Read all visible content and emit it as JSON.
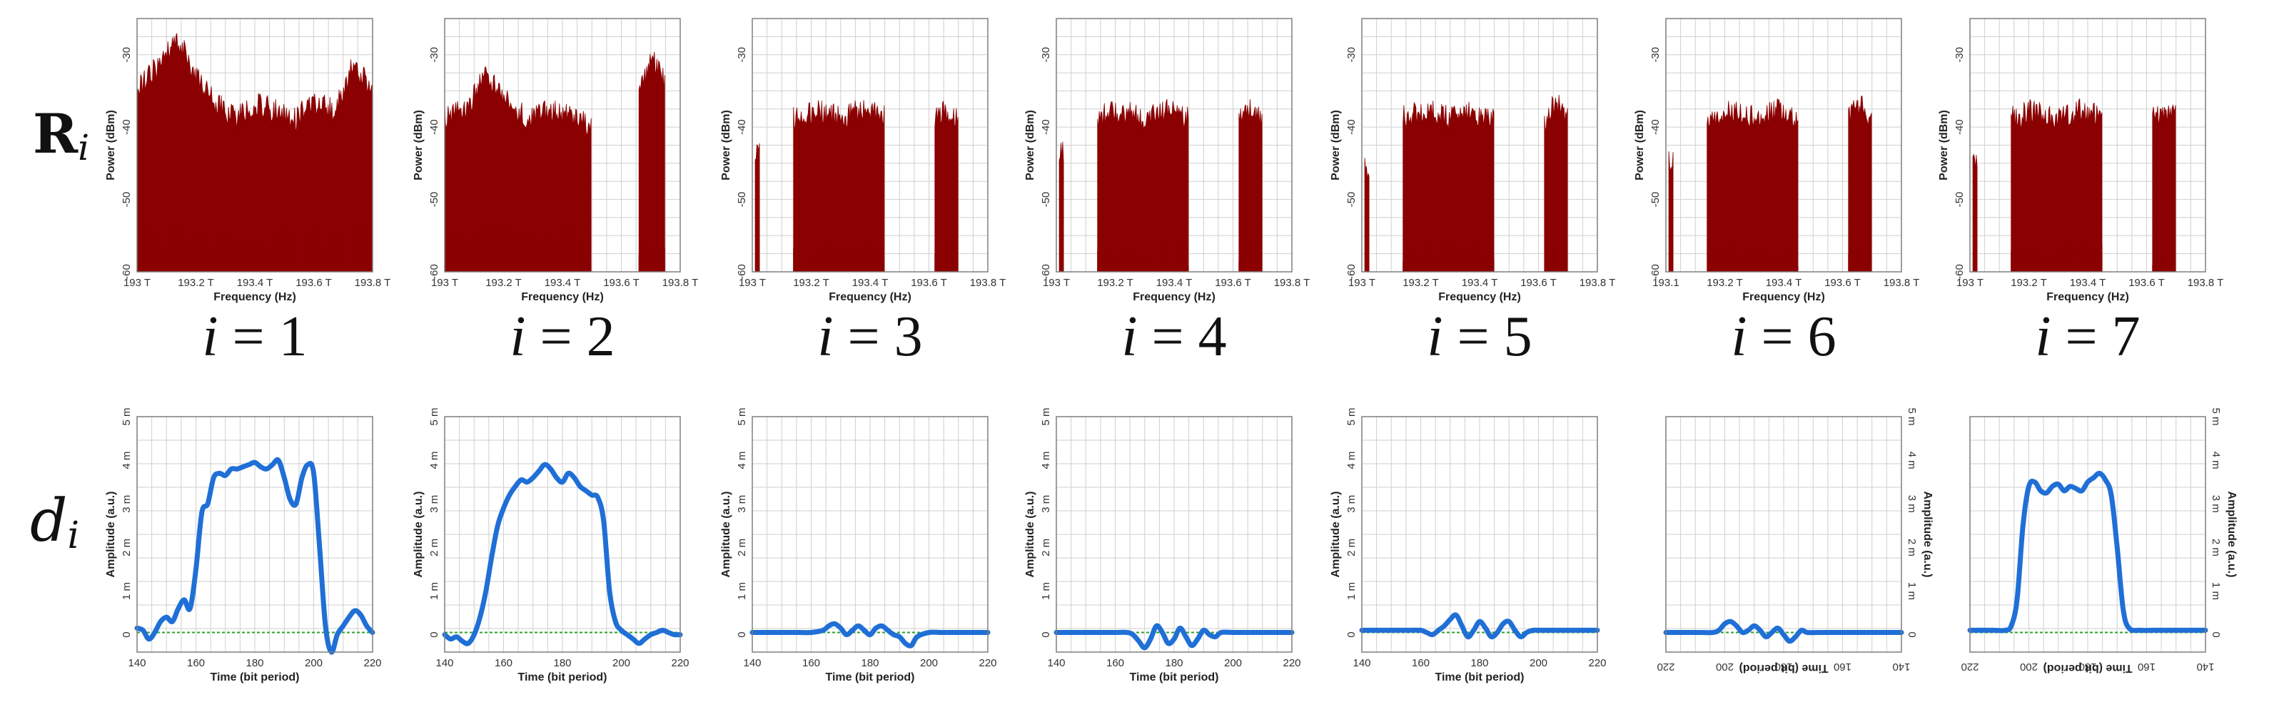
{
  "row_labels": {
    "top_main": "R",
    "top_sub": "i",
    "bottom_main": "d",
    "bottom_sub": "i"
  },
  "colors": {
    "spectrum": "#8b0000",
    "signal": "#1f6fd6",
    "baseline": "#2aa02a",
    "grid": "#cfcfcf",
    "frame": "#7f7f7f"
  },
  "chart_data": [
    {
      "type": "area",
      "panel": "spectrum",
      "index_label": "i = 1",
      "xlabel": "Frequency (Hz)",
      "ylabel": "Power (dBm)",
      "x_ticks": [
        "193 T",
        "193.2 T",
        "193.4 T",
        "193.6 T",
        "193.8 T"
      ],
      "y_ticks": [
        "-30",
        "-40",
        "-50",
        "-60"
      ],
      "ylim": [
        -60,
        -25
      ],
      "grid": true,
      "bands": [
        {
          "from": 193.0,
          "to": 193.8,
          "top_dbm": [
            -33,
            -30,
            -26,
            -31,
            -35,
            -37,
            -35,
            -36,
            -37,
            -35,
            -36,
            -30,
            -33
          ],
          "floor_dbm": -54
        }
      ]
    },
    {
      "type": "area",
      "panel": "spectrum",
      "index_label": "i = 2",
      "xlabel": "Frequency (Hz)",
      "ylabel": "Power (dBm)",
      "x_ticks": [
        "193 T",
        "193.2 T",
        "193.4 T",
        "193.6 T",
        "193.8 T"
      ],
      "y_ticks": [
        "-30",
        "-40",
        "-50",
        "-60"
      ],
      "ylim": [
        -60,
        -25
      ],
      "grid": true,
      "bands": [
        {
          "from": 193.0,
          "to": 193.5,
          "top_dbm": [
            -37,
            -36,
            -31,
            -35,
            -37,
            -36,
            -37,
            -38
          ],
          "floor_dbm": -54
        },
        {
          "from": 193.66,
          "to": 193.75,
          "top_dbm": [
            -33,
            -29,
            -32
          ],
          "floor_dbm": -55
        }
      ]
    },
    {
      "type": "area",
      "panel": "spectrum",
      "index_label": "i = 3",
      "xlabel": "Frequency (Hz)",
      "ylabel": "Power (dBm)",
      "x_ticks": [
        "193 T",
        "193.2 T",
        "193.4 T",
        "193.6 T",
        "193.8 T"
      ],
      "y_ticks": [
        "-30",
        "-40",
        "-50",
        "-60"
      ],
      "ylim": [
        -60,
        -25
      ],
      "grid": true,
      "bands": [
        {
          "from": 193.01,
          "to": 193.025,
          "top_dbm": [
            -42,
            -42
          ],
          "floor_dbm": -60
        },
        {
          "from": 193.14,
          "to": 193.45,
          "top_dbm": [
            -37,
            -36,
            -37,
            -36,
            -37
          ],
          "floor_dbm": -56
        },
        {
          "from": 193.62,
          "to": 193.7,
          "top_dbm": [
            -37,
            -36,
            -37
          ],
          "floor_dbm": -56
        }
      ]
    },
    {
      "type": "area",
      "panel": "spectrum",
      "index_label": "i = 4",
      "xlabel": "Frequency (Hz)",
      "ylabel": "Power (dBm)",
      "x_ticks": [
        "193 T",
        "193.2 T",
        "193.4 T",
        "193.6 T",
        "193.8 T"
      ],
      "y_ticks": [
        "-30",
        "-40",
        "-50",
        "-60"
      ],
      "ylim": [
        -60,
        -25
      ],
      "grid": true,
      "bands": [
        {
          "from": 193.01,
          "to": 193.025,
          "top_dbm": [
            -42,
            -42
          ],
          "floor_dbm": -60
        },
        {
          "from": 193.14,
          "to": 193.45,
          "top_dbm": [
            -37,
            -36,
            -37,
            -36,
            -37
          ],
          "floor_dbm": -56
        },
        {
          "from": 193.62,
          "to": 193.7,
          "top_dbm": [
            -37,
            -36,
            -37
          ],
          "floor_dbm": -56
        }
      ]
    },
    {
      "type": "area",
      "panel": "spectrum",
      "index_label": "i = 5",
      "xlabel": "Frequency (Hz)",
      "ylabel": "Power (dBm)",
      "x_ticks": [
        "193 T",
        "193.2 T",
        "193.4 T",
        "193.6 T",
        "193.8 T"
      ],
      "y_ticks": [
        "-30",
        "-40",
        "-50",
        "-60"
      ],
      "ylim": [
        -60,
        -25
      ],
      "grid": true,
      "bands": [
        {
          "from": 193.01,
          "to": 193.025,
          "top_dbm": [
            -44,
            -44
          ],
          "floor_dbm": -60
        },
        {
          "from": 193.14,
          "to": 193.45,
          "top_dbm": [
            -37,
            -36,
            -37,
            -36,
            -37
          ],
          "floor_dbm": -56
        },
        {
          "from": 193.62,
          "to": 193.7,
          "top_dbm": [
            -37,
            -35,
            -37
          ],
          "floor_dbm": -56
        }
      ]
    },
    {
      "type": "area",
      "panel": "spectrum",
      "index_label": "i = 6",
      "xlabel": "Frequency (Hz)",
      "ylabel": "Power (dBm)",
      "x_ticks": [
        "193.1",
        "193.2 T",
        "193.4 T",
        "193.6 T",
        "193.8 T"
      ],
      "y_ticks": [
        "-30",
        "-40",
        "-50",
        "-60"
      ],
      "ylim": [
        -60,
        -25
      ],
      "grid": true,
      "bands": [
        {
          "from": 193.01,
          "to": 193.025,
          "top_dbm": [
            -43,
            -43
          ],
          "floor_dbm": -60
        },
        {
          "from": 193.14,
          "to": 193.45,
          "top_dbm": [
            -37,
            -36,
            -37,
            -36,
            -37
          ],
          "floor_dbm": -56
        },
        {
          "from": 193.62,
          "to": 193.7,
          "top_dbm": [
            -37,
            -35,
            -37
          ],
          "floor_dbm": -56
        }
      ]
    },
    {
      "type": "area",
      "panel": "spectrum",
      "index_label": "i = 7",
      "xlabel": "Frequency (Hz)",
      "ylabel": "Power (dBm)",
      "x_ticks": [
        "193 T",
        "193.2 T",
        "193.4 T",
        "193.6 T",
        "193.8 T"
      ],
      "y_ticks": [
        "-30",
        "-40",
        "-50",
        "-60"
      ],
      "ylim": [
        -60,
        -25
      ],
      "grid": true,
      "bands": [
        {
          "from": 193.01,
          "to": 193.025,
          "top_dbm": [
            -43,
            -43
          ],
          "floor_dbm": -60
        },
        {
          "from": 193.14,
          "to": 193.45,
          "top_dbm": [
            -37,
            -36,
            -37,
            -36,
            -37
          ],
          "floor_dbm": -56
        },
        {
          "from": 193.62,
          "to": 193.7,
          "top_dbm": [
            -37,
            -36,
            -37
          ],
          "floor_dbm": -56
        }
      ]
    },
    {
      "type": "line",
      "panel": "signal",
      "xlabel": "Time (bit period)",
      "ylabel": "Amplitude (a.u.)",
      "x_ticks": [
        "140",
        "160",
        "180",
        "200",
        "220"
      ],
      "y_ticks": [
        "0",
        "1 m",
        "2 m",
        "3 m",
        "4 m",
        "5 m"
      ],
      "xlim": [
        140,
        220
      ],
      "ylim": [
        0,
        5
      ],
      "mirrored": false,
      "grid": true,
      "x": [
        140,
        142,
        144,
        146,
        148,
        150,
        152,
        154,
        156,
        158,
        160,
        162,
        164,
        166,
        168,
        170,
        172,
        174,
        176,
        178,
        180,
        182,
        184,
        186,
        188,
        190,
        192,
        194,
        196,
        198,
        200,
        202,
        204,
        206,
        208,
        210,
        212,
        214,
        216,
        218,
        220
      ],
      "y": [
        0.15,
        0.1,
        -0.1,
        0.05,
        0.3,
        0.4,
        0.3,
        0.6,
        0.8,
        0.6,
        1.5,
        2.8,
        3.0,
        3.6,
        3.7,
        3.65,
        3.8,
        3.8,
        3.85,
        3.9,
        3.95,
        3.85,
        3.8,
        3.9,
        4.0,
        3.6,
        3.1,
        3.0,
        3.6,
        3.9,
        3.7,
        2.0,
        0.2,
        -0.4,
        0.0,
        0.2,
        0.4,
        0.55,
        0.45,
        0.2,
        0.05
      ]
    },
    {
      "type": "line",
      "panel": "signal",
      "xlabel": "Time (bit period)",
      "ylabel": "Amplitude (a.u.)",
      "x_ticks": [
        "140",
        "160",
        "180",
        "200",
        "220"
      ],
      "y_ticks": [
        "0",
        "1 m",
        "2 m",
        "3 m",
        "4 m",
        "5 m"
      ],
      "xlim": [
        140,
        220
      ],
      "ylim": [
        0,
        5
      ],
      "mirrored": false,
      "grid": true,
      "x": [
        140,
        142,
        144,
        146,
        148,
        150,
        152,
        154,
        156,
        158,
        160,
        162,
        164,
        166,
        168,
        170,
        172,
        174,
        176,
        178,
        180,
        182,
        184,
        186,
        188,
        190,
        192,
        194,
        196,
        198,
        200,
        202,
        204,
        206,
        208,
        210,
        212,
        214,
        216,
        218,
        220
      ],
      "y": [
        0.0,
        -0.1,
        -0.05,
        -0.15,
        -0.2,
        0.0,
        0.4,
        1.0,
        1.8,
        2.5,
        2.9,
        3.2,
        3.4,
        3.55,
        3.5,
        3.6,
        3.75,
        3.9,
        3.8,
        3.6,
        3.5,
        3.7,
        3.6,
        3.4,
        3.3,
        3.2,
        3.15,
        2.6,
        1.0,
        0.3,
        0.1,
        0.0,
        -0.1,
        -0.2,
        -0.1,
        0.0,
        0.05,
        0.1,
        0.05,
        0.0,
        0.0
      ]
    },
    {
      "type": "line",
      "panel": "signal",
      "xlabel": "Time (bit period)",
      "ylabel": "Amplitude (a.u.)",
      "x_ticks": [
        "140",
        "160",
        "180",
        "200",
        "220"
      ],
      "y_ticks": [
        "0",
        "1 m",
        "2 m",
        "3 m",
        "4 m",
        "5 m"
      ],
      "xlim": [
        140,
        220
      ],
      "ylim": [
        0,
        5
      ],
      "mirrored": false,
      "grid": true,
      "x": [
        140,
        144,
        148,
        152,
        156,
        160,
        164,
        166,
        168,
        170,
        172,
        174,
        176,
        178,
        180,
        182,
        184,
        186,
        188,
        190,
        192,
        194,
        196,
        200,
        204,
        208,
        212,
        216,
        220
      ],
      "y": [
        0.05,
        0.05,
        0.05,
        0.05,
        0.05,
        0.05,
        0.1,
        0.2,
        0.25,
        0.15,
        0.0,
        0.1,
        0.2,
        0.1,
        0.0,
        0.15,
        0.2,
        0.1,
        0.0,
        -0.05,
        -0.2,
        -0.25,
        -0.05,
        0.05,
        0.05,
        0.05,
        0.05,
        0.05,
        0.05
      ]
    },
    {
      "type": "line",
      "panel": "signal",
      "xlabel": "Time (bit period)",
      "ylabel": "Amplitude (a.u.)",
      "x_ticks": [
        "140",
        "160",
        "180",
        "200",
        "220"
      ],
      "y_ticks": [
        "0",
        "1 m",
        "2 m",
        "3 m",
        "4 m",
        "5 m"
      ],
      "xlim": [
        140,
        220
      ],
      "ylim": [
        0,
        5
      ],
      "mirrored": false,
      "grid": true,
      "x": [
        140,
        144,
        148,
        152,
        156,
        160,
        164,
        166,
        168,
        170,
        172,
        174,
        176,
        178,
        180,
        182,
        184,
        186,
        188,
        190,
        192,
        194,
        196,
        200,
        204,
        208,
        212,
        216,
        220
      ],
      "y": [
        0.05,
        0.05,
        0.05,
        0.05,
        0.05,
        0.05,
        0.05,
        0.0,
        -0.15,
        -0.3,
        -0.1,
        0.2,
        0.05,
        -0.2,
        -0.1,
        0.15,
        -0.05,
        -0.25,
        -0.1,
        0.1,
        0.0,
        -0.05,
        0.05,
        0.05,
        0.05,
        0.05,
        0.05,
        0.05,
        0.05
      ]
    },
    {
      "type": "line",
      "panel": "signal",
      "xlabel": "Time (bit period)",
      "ylabel": "Amplitude (a.u.)",
      "x_ticks": [
        "140",
        "160",
        "180",
        "200",
        "220"
      ],
      "y_ticks": [
        "0",
        "1 m",
        "2 m",
        "3 m",
        "4 m",
        "5 m"
      ],
      "xlim": [
        140,
        220
      ],
      "ylim": [
        0,
        5
      ],
      "mirrored": false,
      "grid": true,
      "x": [
        140,
        144,
        148,
        152,
        156,
        160,
        162,
        164,
        166,
        168,
        170,
        172,
        174,
        176,
        178,
        180,
        182,
        184,
        186,
        188,
        190,
        192,
        194,
        196,
        198,
        200,
        204,
        208,
        212,
        216,
        220
      ],
      "y": [
        0.1,
        0.1,
        0.1,
        0.1,
        0.1,
        0.1,
        0.05,
        0.0,
        0.1,
        0.2,
        0.35,
        0.45,
        0.2,
        -0.05,
        0.1,
        0.3,
        0.15,
        -0.05,
        0.05,
        0.25,
        0.3,
        0.1,
        -0.05,
        0.05,
        0.1,
        0.1,
        0.1,
        0.1,
        0.1,
        0.1,
        0.1
      ]
    },
    {
      "type": "line",
      "panel": "signal",
      "xlabel": "Time (bit period)",
      "ylabel": "Amplitude (a.u.)",
      "x_ticks": [
        "220",
        "200",
        "180",
        "160",
        "140"
      ],
      "y_ticks": [
        "0",
        "1 m",
        "2 m",
        "3 m",
        "4 m",
        "5 m"
      ],
      "xlim": [
        220,
        140
      ],
      "ylim": [
        0,
        5
      ],
      "mirrored": true,
      "grid": true,
      "x": [
        220,
        216,
        212,
        208,
        204,
        202,
        200,
        198,
        196,
        194,
        192,
        190,
        188,
        186,
        184,
        182,
        180,
        178,
        176,
        174,
        172,
        168,
        164,
        160,
        156,
        152,
        148,
        144,
        140
      ],
      "y": [
        0.05,
        0.05,
        0.05,
        0.05,
        0.05,
        0.1,
        0.25,
        0.3,
        0.2,
        0.05,
        0.1,
        0.2,
        0.1,
        -0.05,
        0.05,
        0.15,
        0.0,
        -0.15,
        -0.05,
        0.1,
        0.05,
        0.05,
        0.05,
        0.05,
        0.05,
        0.05,
        0.05,
        0.05,
        0.05
      ]
    },
    {
      "type": "line",
      "panel": "signal",
      "xlabel": "Time (bit period)",
      "ylabel": "Amplitude (a.u.)",
      "x_ticks": [
        "220",
        "200",
        "180",
        "160",
        "140"
      ],
      "y_ticks": [
        "0",
        "1 m",
        "2 m",
        "3 m",
        "4 m",
        "5 m"
      ],
      "xlim": [
        220,
        140
      ],
      "ylim": [
        0,
        5
      ],
      "mirrored": true,
      "grid": true,
      "x": [
        220,
        216,
        212,
        208,
        206,
        204,
        202,
        200,
        198,
        196,
        194,
        192,
        190,
        188,
        186,
        184,
        182,
        180,
        178,
        176,
        174,
        172,
        170,
        168,
        166,
        162,
        158,
        154,
        150,
        146,
        140
      ],
      "y": [
        0.1,
        0.1,
        0.1,
        0.1,
        0.2,
        0.8,
        2.5,
        3.4,
        3.5,
        3.3,
        3.25,
        3.4,
        3.45,
        3.3,
        3.4,
        3.35,
        3.3,
        3.5,
        3.6,
        3.7,
        3.55,
        3.2,
        2.0,
        0.6,
        0.15,
        0.1,
        0.1,
        0.1,
        0.1,
        0.1,
        0.1
      ]
    }
  ]
}
